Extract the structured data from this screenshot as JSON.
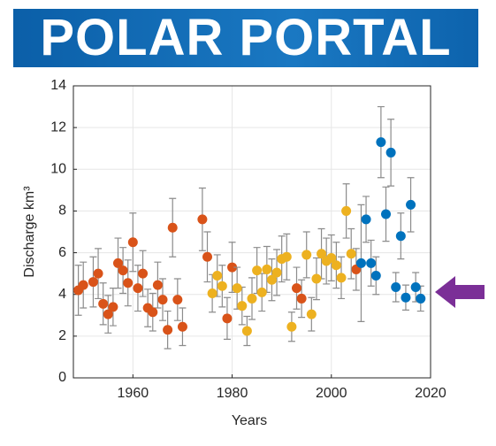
{
  "header": {
    "title": "POLAR PORTAL"
  },
  "chart_data": {
    "type": "scatter",
    "xlabel": "Years",
    "ylabel": "Discharge km³",
    "xlim": [
      1948,
      2020
    ],
    "ylim": [
      0,
      14
    ],
    "xticks": [
      1960,
      1980,
      2000,
      2020
    ],
    "yticks": [
      0,
      2,
      4,
      6,
      8,
      10,
      12,
      14
    ],
    "grid": true,
    "series": [
      {
        "color": "#d95319",
        "x": [
          1949,
          1950,
          1952,
          1953,
          1954,
          1955,
          1956,
          1957,
          1958,
          1959,
          1960,
          1961,
          1962,
          1963,
          1964,
          1965,
          1966,
          1967,
          1968,
          1969,
          1970,
          1974,
          1975,
          1979,
          1980,
          1993,
          1994,
          2005
        ],
        "values": [
          4.2,
          4.45,
          4.6,
          5.0,
          3.55,
          3.05,
          3.4,
          5.5,
          5.15,
          4.55,
          6.5,
          4.3,
          5.0,
          3.35,
          3.15,
          4.45,
          3.75,
          2.3,
          7.2,
          3.75,
          2.45,
          7.6,
          5.8,
          2.85,
          5.3,
          4.3,
          3.8,
          5.2
        ],
        "errors": [
          1.2,
          1.1,
          1.2,
          1.2,
          1.0,
          0.9,
          0.9,
          1.2,
          1.1,
          1.1,
          1.4,
          1.1,
          1.1,
          0.9,
          0.9,
          1.1,
          1.0,
          0.9,
          1.4,
          1.0,
          0.9,
          1.5,
          1.2,
          1.0,
          1.2,
          1.0,
          0.9,
          1.0
        ]
      },
      {
        "color": "#edb120",
        "x": [
          1976,
          1977,
          1978,
          1981,
          1982,
          1983,
          1984,
          1985,
          1986,
          1987,
          1988,
          1989,
          1990,
          1991,
          1992,
          1995,
          1996,
          1997,
          1998,
          1999,
          2000,
          2001,
          2002,
          2003,
          2004
        ],
        "values": [
          4.05,
          4.9,
          4.4,
          4.3,
          3.45,
          2.25,
          3.8,
          5.15,
          4.1,
          5.2,
          4.7,
          5.05,
          5.7,
          5.8,
          2.45,
          5.9,
          3.05,
          4.75,
          5.95,
          5.6,
          5.75,
          5.4,
          4.8,
          8.0,
          5.95
        ],
        "errors": [
          0.9,
          1.0,
          1.0,
          1.0,
          0.9,
          0.7,
          1.0,
          1.1,
          0.9,
          1.1,
          1.0,
          1.1,
          1.1,
          1.1,
          0.7,
          1.1,
          0.8,
          1.0,
          1.2,
          1.1,
          1.1,
          1.1,
          1.0,
          1.3,
          1.2
        ]
      },
      {
        "color": "#0072bd",
        "x": [
          2006,
          2007,
          2008,
          2009,
          2010,
          2011,
          2012,
          2013,
          2014,
          2015,
          2016,
          2017,
          2018
        ],
        "values": [
          5.5,
          7.6,
          5.5,
          4.9,
          11.3,
          7.85,
          10.8,
          4.35,
          6.8,
          3.85,
          8.3,
          4.35,
          3.8
        ],
        "errors": [
          2.8,
          1.1,
          1.1,
          0.9,
          1.7,
          1.3,
          1.6,
          0.7,
          1.1,
          0.6,
          1.3,
          0.7,
          0.6
        ]
      }
    ]
  }
}
